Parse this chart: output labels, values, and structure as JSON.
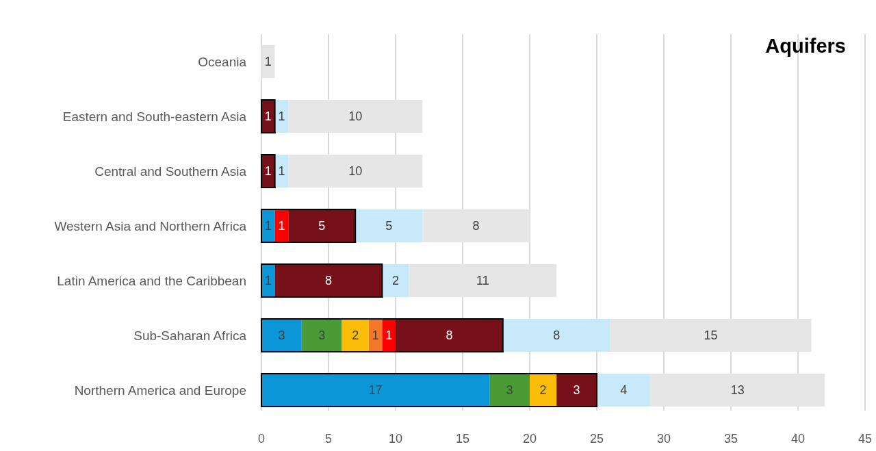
{
  "chart_data": {
    "type": "bar",
    "orientation": "horizontal",
    "stacked": true,
    "title": "Aquifers",
    "categories": [
      "Oceania",
      "Eastern and South-eastern Asia",
      "Central and Southern Asia",
      "Western Asia and Northern Africa",
      "Latin America and the Caribbean",
      "Sub-Saharan Africa",
      "Northern America and Europe"
    ],
    "series": [
      {
        "color": "#0b96d8",
        "values": [
          null,
          null,
          null,
          1,
          1,
          3,
          17
        ]
      },
      {
        "color": "#4a9a37",
        "values": [
          null,
          null,
          null,
          null,
          null,
          3,
          3
        ]
      },
      {
        "color": "#fbbd08",
        "values": [
          null,
          null,
          null,
          null,
          null,
          2,
          2
        ]
      },
      {
        "color": "#f5782a",
        "values": [
          null,
          null,
          null,
          null,
          null,
          1,
          null
        ]
      },
      {
        "color": "#ff0000",
        "values": [
          null,
          null,
          null,
          1,
          null,
          1,
          null
        ]
      },
      {
        "color": "#76111a",
        "values": [
          null,
          1,
          1,
          5,
          8,
          8,
          3
        ]
      },
      {
        "color": "#c8e9fa",
        "values": [
          null,
          1,
          1,
          5,
          2,
          8,
          4
        ]
      },
      {
        "color": "#e6e6e6",
        "values": [
          1,
          10,
          10,
          8,
          11,
          15,
          13
        ]
      }
    ],
    "xlim": [
      0,
      45
    ],
    "xticks": [
      0,
      5,
      10,
      15,
      20,
      25,
      30,
      35,
      40,
      45
    ],
    "grid": "x",
    "data_labels": true
  }
}
